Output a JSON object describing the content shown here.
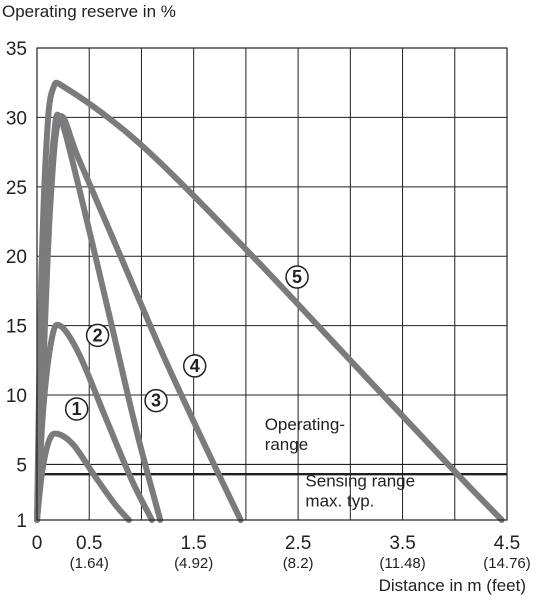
{
  "chart_data": {
    "type": "line",
    "ylabel": "Operating reserve in %",
    "xlabel": "Distance in m (feet)",
    "xlim": [
      0,
      4.5
    ],
    "ylim": [
      1,
      35
    ],
    "y_ticks": [
      {
        "value": 1,
        "label": "1"
      },
      {
        "value": 5,
        "label": "5"
      },
      {
        "value": 10,
        "label": "10"
      },
      {
        "value": 15,
        "label": "15"
      },
      {
        "value": 20,
        "label": "20"
      },
      {
        "value": 25,
        "label": "25"
      },
      {
        "value": 30,
        "label": "30"
      },
      {
        "value": 35,
        "label": "35"
      }
    ],
    "x_ticks": [
      {
        "value": 0,
        "label": "0",
        "sub": ""
      },
      {
        "value": 0.5,
        "label": "0.5",
        "sub": "(1.64)"
      },
      {
        "value": 1.5,
        "label": "1.5",
        "sub": "(4.92)"
      },
      {
        "value": 2.5,
        "label": "2.5",
        "sub": "(8.2)"
      },
      {
        "value": 3.5,
        "label": "3.5",
        "sub": "(11.48)"
      },
      {
        "value": 4.5,
        "label": "4.5",
        "sub": "(14.76)"
      }
    ],
    "grid": true,
    "series": [
      {
        "name": "①",
        "x": [
          0,
          0.05,
          0.12,
          0.2,
          0.35,
          0.55,
          0.75,
          0.88
        ],
        "y": [
          1,
          4.5,
          6.8,
          7.2,
          6.4,
          4.2,
          2.1,
          1
        ],
        "label_at": [
          0.38,
          9
        ]
      },
      {
        "name": "②",
        "x": [
          0,
          0.06,
          0.14,
          0.22,
          0.4,
          0.65,
          0.9,
          1.1
        ],
        "y": [
          1,
          9,
          14,
          15,
          13,
          8.5,
          4,
          1
        ],
        "label_at": [
          0.58,
          14.3
        ]
      },
      {
        "name": "③",
        "x": [
          0,
          0.05,
          0.1,
          0.16,
          0.22,
          0.4,
          0.7,
          0.95,
          1.18
        ],
        "y": [
          1,
          12,
          22,
          28.5,
          30,
          25,
          15.5,
          7.5,
          1
        ],
        "label_at": [
          1.14,
          9.6
        ]
      },
      {
        "name": "④",
        "x": [
          0,
          0.06,
          0.13,
          0.22,
          0.4,
          0.8,
          1.2,
          1.6,
          1.95
        ],
        "y": [
          1,
          12,
          24,
          30,
          27,
          20,
          13,
          6.5,
          1
        ],
        "label_at": [
          1.51,
          12.1
        ]
      },
      {
        "name": "⑤",
        "x": [
          0,
          0.04,
          0.09,
          0.15,
          0.3,
          1.0,
          2.0,
          3.0,
          4.0,
          4.45
        ],
        "y": [
          1,
          18,
          28,
          32,
          32,
          28,
          20.5,
          12.5,
          4.5,
          1
        ],
        "label_at": [
          2.49,
          18.5
        ]
      }
    ],
    "reference_lines": [
      {
        "y": 5,
        "style": "thin",
        "text": "Operating-\nrange",
        "text_at": [
          2.18,
          7.5
        ]
      },
      {
        "y": 4.3,
        "style": "thick",
        "text": "Sensing range\nmax. typ.",
        "text_at": [
          2.57,
          3.4
        ]
      }
    ]
  }
}
